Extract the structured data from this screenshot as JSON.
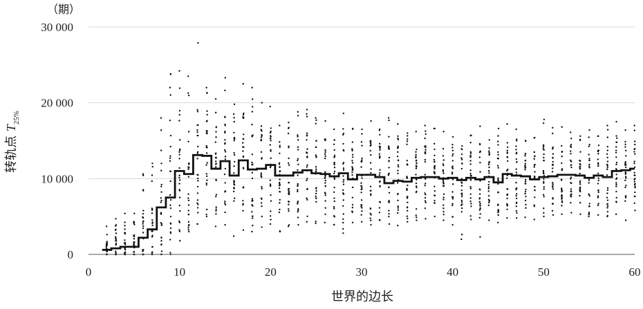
{
  "chart_data": {
    "type": "scatter",
    "title": "",
    "xlabel": "世界的边长",
    "ylabel": {
      "prefix": "转轨点 ",
      "symbol": "T",
      "subscript": "25%"
    },
    "y_unit": "（期）",
    "xlim": [
      0,
      60
    ],
    "ylim": [
      0,
      30000
    ],
    "x_ticks": [
      0,
      10,
      20,
      30,
      40,
      50,
      60
    ],
    "x_tick_labels": [
      "0",
      "10",
      "20",
      "30",
      "40",
      "50",
      "60"
    ],
    "y_ticks": [
      0,
      10000,
      20000,
      30000
    ],
    "y_tick_labels": [
      "0",
      "10 000",
      "20 000",
      "30 000"
    ],
    "grid": {
      "horizontal": true,
      "vertical": false
    },
    "median_step": {
      "x": [
        2,
        3,
        4,
        5,
        6,
        7,
        8,
        9,
        10,
        11,
        12,
        13,
        14,
        15,
        16,
        17,
        18,
        19,
        20,
        21,
        22,
        23,
        24,
        25,
        26,
        27,
        28,
        29,
        30,
        31,
        32,
        33,
        34,
        35,
        36,
        37,
        38,
        39,
        40,
        41,
        42,
        43,
        44,
        45,
        46,
        47,
        48,
        49,
        50,
        51,
        52,
        53,
        54,
        55,
        56,
        57,
        58,
        59,
        60
      ],
      "y": [
        600,
        800,
        1000,
        1000,
        2200,
        3300,
        6200,
        7500,
        11000,
        10600,
        13100,
        13000,
        11300,
        12300,
        10400,
        12400,
        11200,
        11300,
        11800,
        10400,
        10400,
        10800,
        11100,
        10700,
        10600,
        10300,
        10700,
        9900,
        10500,
        10500,
        10200,
        9400,
        9700,
        9600,
        10100,
        10200,
        10200,
        10000,
        10100,
        9800,
        10100,
        9900,
        10200,
        9500,
        10600,
        10400,
        10300,
        9900,
        10200,
        10300,
        10500,
        10500,
        10400,
        10100,
        10400,
        10200,
        11000,
        11100,
        11300
      ]
    },
    "scatter_spread": {
      "low": [
        0,
        0,
        0,
        0,
        0,
        0,
        0,
        0,
        1800,
        3000,
        4000,
        5000,
        3700,
        3900,
        2400,
        3200,
        3000,
        3600,
        4000,
        3000,
        3700,
        3900,
        4300,
        4100,
        4200,
        3900,
        2800,
        4200,
        4300,
        3900,
        4500,
        4000,
        3800,
        4300,
        4500,
        4700,
        5000,
        4500,
        3900,
        2000,
        4600,
        2300,
        4500,
        4200,
        4800,
        4800,
        4900,
        4600,
        5000,
        5200,
        5300,
        5500,
        5300,
        5000,
        5200,
        5000,
        5300,
        4500,
        5800
      ],
      "high": [
        3700,
        4700,
        5400,
        5400,
        10600,
        12000,
        18000,
        23800,
        24200,
        23500,
        27900,
        22000,
        20500,
        23300,
        19800,
        22500,
        22000,
        20000,
        19500,
        17000,
        17400,
        18800,
        19100,
        18000,
        17600,
        16500,
        18600,
        16600,
        16500,
        17600,
        16500,
        18000,
        17200,
        16000,
        16200,
        17000,
        16600,
        16200,
        15500,
        14300,
        15700,
        16900,
        15100,
        16600,
        17200,
        16500,
        15000,
        15400,
        17800,
        16700,
        16800,
        16100,
        15600,
        16400,
        15600,
        17000,
        17500,
        16400,
        17000
      ]
    }
  }
}
